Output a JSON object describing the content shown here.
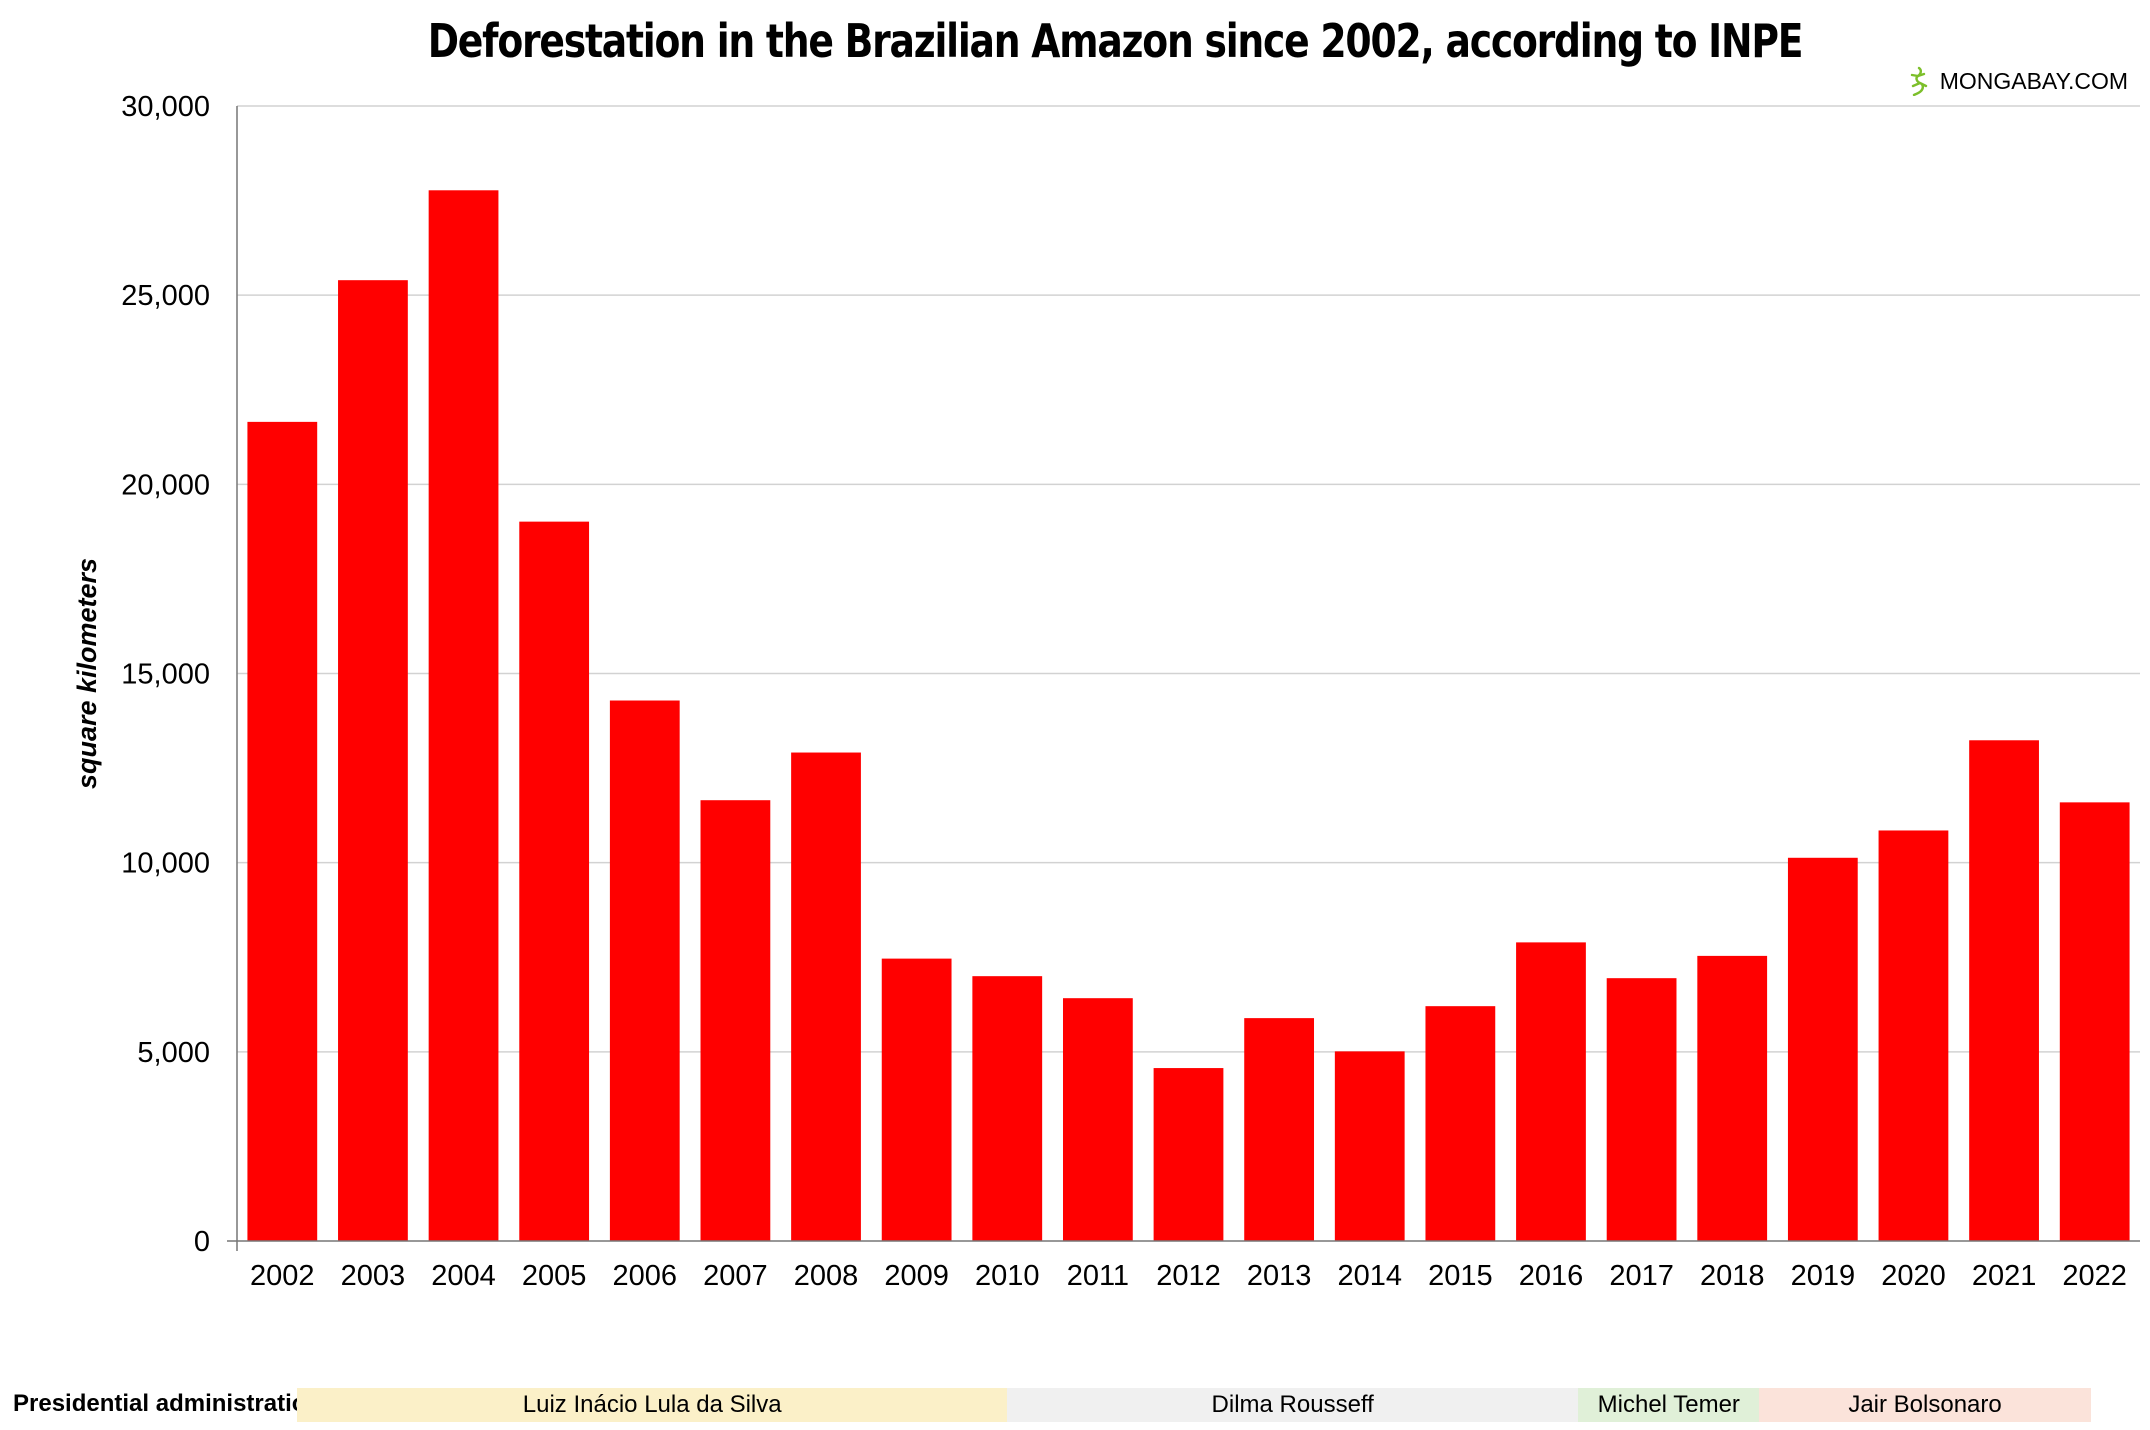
{
  "chart_data": {
    "type": "bar",
    "title": "Deforestation in the Brazilian Amazon since 2002, according to INPE",
    "xlabel": "",
    "ylabel": "square kilometers",
    "ylim": [
      0,
      30000
    ],
    "yticks": [
      0,
      5000,
      10000,
      15000,
      20000,
      25000,
      30000
    ],
    "ytick_labels": [
      "0",
      "5,000",
      "10,000",
      "15,000",
      "20,000",
      "25,000",
      "30,000"
    ],
    "grid": "horizontal",
    "bar_color": "#ff0000",
    "categories": [
      "2002",
      "2003",
      "2004",
      "2005",
      "2006",
      "2007",
      "2008",
      "2009",
      "2010",
      "2011",
      "2012",
      "2013",
      "2014",
      "2015",
      "2016",
      "2017",
      "2018",
      "2019",
      "2020",
      "2021",
      "2022"
    ],
    "values": [
      21651,
      25396,
      27772,
      19014,
      14286,
      11651,
      12911,
      7464,
      7000,
      6418,
      4571,
      5891,
      5012,
      6207,
      7893,
      6947,
      7536,
      10129,
      10851,
      13235,
      11594
    ]
  },
  "brand": {
    "text": "MONGABAY.COM",
    "icon": "gecko-logo-icon",
    "icon_color": "#7cbf2a"
  },
  "administrations": {
    "label": "Presidential administration:",
    "bands": [
      {
        "name": "Luiz Inácio Lula da Silva",
        "from": "2003",
        "to": "2010",
        "color": "#fbf0c8"
      },
      {
        "name": "Dilma Rousseff",
        "from": "2011",
        "to": "2016",
        "color": "#f0f0f0"
      },
      {
        "name": "Michel Temer",
        "from": "2016",
        "to": "2018",
        "color": "#e0f0d8"
      },
      {
        "name": "Jair Bolsonaro",
        "from": "2019",
        "to": "2022",
        "color": "#fbe3da"
      }
    ]
  }
}
